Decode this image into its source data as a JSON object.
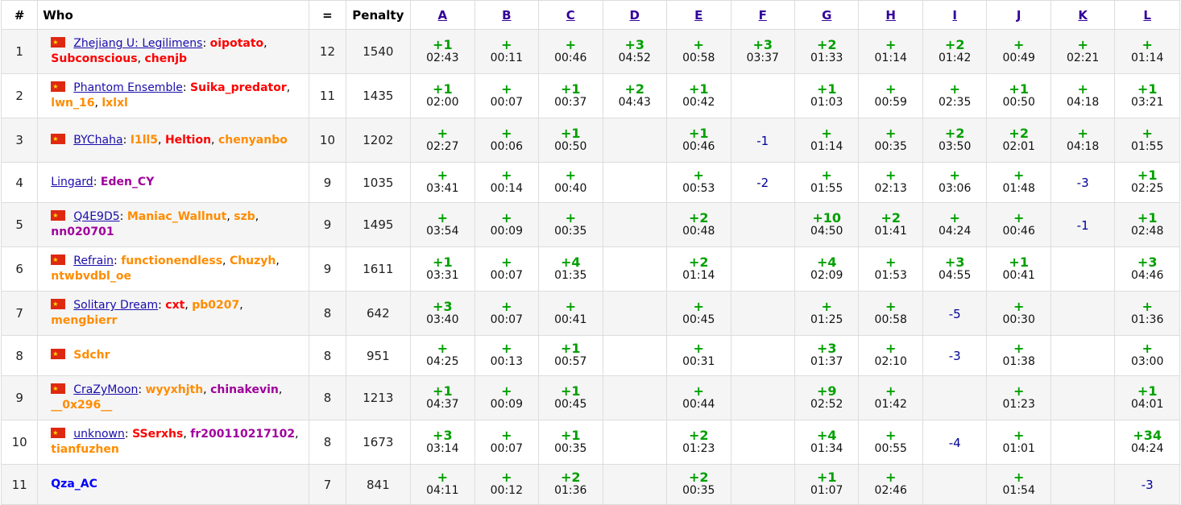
{
  "header": {
    "rank": "#",
    "who": "Who",
    "solved": "=",
    "penalty": "Penalty",
    "problems": [
      "A",
      "B",
      "C",
      "D",
      "E",
      "F",
      "G",
      "H",
      "I",
      "J",
      "K",
      "L"
    ]
  },
  "rows": [
    {
      "rank": "1",
      "flag": true,
      "team": "Zhejiang U: Legilimens",
      "members": [
        {
          "name": "oipotato",
          "color": "red"
        },
        {
          "name": "Subconscious",
          "color": "red"
        },
        {
          "name": "chenjb",
          "color": "red"
        }
      ],
      "solved": "12",
      "penalty": "1540",
      "cells": [
        {
          "t": "+1",
          "m": "02:43"
        },
        {
          "t": "+",
          "m": "00:11"
        },
        {
          "t": "+",
          "m": "00:46"
        },
        {
          "t": "+3",
          "m": "04:52"
        },
        {
          "t": "+",
          "m": "00:58"
        },
        {
          "t": "+3",
          "m": "03:37"
        },
        {
          "t": "+2",
          "m": "01:33"
        },
        {
          "t": "+",
          "m": "01:14"
        },
        {
          "t": "+2",
          "m": "01:42"
        },
        {
          "t": "+",
          "m": "00:49"
        },
        {
          "t": "+",
          "m": "02:21"
        },
        {
          "t": "+",
          "m": "01:14"
        }
      ]
    },
    {
      "rank": "2",
      "flag": true,
      "team": "Phantom Ensemble",
      "members": [
        {
          "name": "Suika_predator",
          "color": "red"
        },
        {
          "name": "lwn_16",
          "color": "org"
        },
        {
          "name": "lxlxl",
          "color": "org"
        }
      ],
      "solved": "11",
      "penalty": "1435",
      "cells": [
        {
          "t": "+1",
          "m": "02:00"
        },
        {
          "t": "+",
          "m": "00:07"
        },
        {
          "t": "+1",
          "m": "00:37"
        },
        {
          "t": "+2",
          "m": "04:43"
        },
        {
          "t": "+1",
          "m": "00:42"
        },
        {},
        {
          "t": "+1",
          "m": "01:03"
        },
        {
          "t": "+",
          "m": "00:59"
        },
        {
          "t": "+",
          "m": "02:35"
        },
        {
          "t": "+1",
          "m": "00:50"
        },
        {
          "t": "+",
          "m": "04:18"
        },
        {
          "t": "+1",
          "m": "03:21"
        }
      ]
    },
    {
      "rank": "3",
      "flag": true,
      "team": "BYChaha",
      "members": [
        {
          "name": "I1ll5",
          "color": "org"
        },
        {
          "name": "Heltion",
          "color": "red"
        },
        {
          "name": "chenyanbo",
          "color": "org"
        }
      ],
      "solved": "10",
      "penalty": "1202",
      "cells": [
        {
          "t": "+",
          "m": "02:27"
        },
        {
          "t": "+",
          "m": "00:06"
        },
        {
          "t": "+1",
          "m": "00:50"
        },
        {},
        {
          "t": "+1",
          "m": "00:46"
        },
        {
          "w": "-1"
        },
        {
          "t": "+",
          "m": "01:14"
        },
        {
          "t": "+",
          "m": "00:35"
        },
        {
          "t": "+2",
          "m": "03:50"
        },
        {
          "t": "+2",
          "m": "02:01"
        },
        {
          "t": "+",
          "m": "04:18"
        },
        {
          "t": "+",
          "m": "01:55"
        }
      ]
    },
    {
      "rank": "4",
      "flag": false,
      "team": "Lingard",
      "members": [
        {
          "name": "Eden_CY",
          "color": "pur"
        }
      ],
      "solved": "9",
      "penalty": "1035",
      "short": true,
      "cells": [
        {
          "t": "+",
          "m": "03:41"
        },
        {
          "t": "+",
          "m": "00:14"
        },
        {
          "t": "+",
          "m": "00:40"
        },
        {},
        {
          "t": "+",
          "m": "00:53"
        },
        {
          "w": "-2"
        },
        {
          "t": "+",
          "m": "01:55"
        },
        {
          "t": "+",
          "m": "02:13"
        },
        {
          "t": "+",
          "m": "03:06"
        },
        {
          "t": "+",
          "m": "01:48"
        },
        {
          "w": "-3"
        },
        {
          "t": "+1",
          "m": "02:25"
        }
      ]
    },
    {
      "rank": "5",
      "flag": true,
      "team": "Q4E9D5",
      "members": [
        {
          "name": "Maniac_Wallnut",
          "color": "org"
        },
        {
          "name": "szb",
          "color": "org"
        },
        {
          "name": "nn020701",
          "color": "pur"
        }
      ],
      "solved": "9",
      "penalty": "1495",
      "cells": [
        {
          "t": "+",
          "m": "03:54"
        },
        {
          "t": "+",
          "m": "00:09"
        },
        {
          "t": "+",
          "m": "00:35"
        },
        {},
        {
          "t": "+2",
          "m": "00:48"
        },
        {},
        {
          "t": "+10",
          "m": "04:50"
        },
        {
          "t": "+2",
          "m": "01:41"
        },
        {
          "t": "+",
          "m": "04:24"
        },
        {
          "t": "+",
          "m": "00:46"
        },
        {
          "w": "-1"
        },
        {
          "t": "+1",
          "m": "02:48"
        }
      ]
    },
    {
      "rank": "6",
      "flag": true,
      "team": "Refrain",
      "members": [
        {
          "name": "functionendless",
          "color": "org"
        },
        {
          "name": "Chuzyh",
          "color": "org"
        },
        {
          "name": "ntwbvdbl_oe",
          "color": "org"
        }
      ],
      "solved": "9",
      "penalty": "1611",
      "cells": [
        {
          "t": "+1",
          "m": "03:31"
        },
        {
          "t": "+",
          "m": "00:07"
        },
        {
          "t": "+4",
          "m": "01:35"
        },
        {},
        {
          "t": "+2",
          "m": "01:14"
        },
        {},
        {
          "t": "+4",
          "m": "02:09"
        },
        {
          "t": "+",
          "m": "01:53"
        },
        {
          "t": "+3",
          "m": "04:55"
        },
        {
          "t": "+1",
          "m": "00:41"
        },
        {},
        {
          "t": "+3",
          "m": "04:46"
        }
      ]
    },
    {
      "rank": "7",
      "flag": true,
      "team": "Solitary Dream",
      "members": [
        {
          "name": "cxt",
          "color": "red"
        },
        {
          "name": "pb0207",
          "color": "org"
        },
        {
          "name": "mengbierr",
          "color": "org"
        }
      ],
      "solved": "8",
      "penalty": "642",
      "cells": [
        {
          "t": "+3",
          "m": "03:40"
        },
        {
          "t": "+",
          "m": "00:07"
        },
        {
          "t": "+",
          "m": "00:41"
        },
        {},
        {
          "t": "+",
          "m": "00:45"
        },
        {},
        {
          "t": "+",
          "m": "01:25"
        },
        {
          "t": "+",
          "m": "00:58"
        },
        {
          "w": "-5"
        },
        {
          "t": "+",
          "m": "00:30"
        },
        {},
        {
          "t": "+",
          "m": "01:36"
        }
      ]
    },
    {
      "rank": "8",
      "flag": true,
      "team": "",
      "members": [
        {
          "name": "Sdchr",
          "color": "org"
        }
      ],
      "solved": "8",
      "penalty": "951",
      "short": true,
      "cells": [
        {
          "t": "+",
          "m": "04:25"
        },
        {
          "t": "+",
          "m": "00:13"
        },
        {
          "t": "+1",
          "m": "00:57"
        },
        {},
        {
          "t": "+",
          "m": "00:31"
        },
        {},
        {
          "t": "+3",
          "m": "01:37"
        },
        {
          "t": "+",
          "m": "02:10"
        },
        {
          "w": "-3"
        },
        {
          "t": "+",
          "m": "01:38"
        },
        {},
        {
          "t": "+",
          "m": "03:00"
        }
      ]
    },
    {
      "rank": "9",
      "flag": true,
      "team": "CraZyMoon",
      "members": [
        {
          "name": "wyyxhjth",
          "color": "org"
        },
        {
          "name": "chinakevin",
          "color": "pur"
        },
        {
          "name": "__0x296__",
          "color": "org"
        }
      ],
      "solved": "8",
      "penalty": "1213",
      "cells": [
        {
          "t": "+1",
          "m": "04:37"
        },
        {
          "t": "+",
          "m": "00:09"
        },
        {
          "t": "+1",
          "m": "00:45"
        },
        {},
        {
          "t": "+",
          "m": "00:44"
        },
        {},
        {
          "t": "+9",
          "m": "02:52"
        },
        {
          "t": "+",
          "m": "01:42"
        },
        {},
        {
          "t": "+",
          "m": "01:23"
        },
        {},
        {
          "t": "+1",
          "m": "04:01"
        }
      ]
    },
    {
      "rank": "10",
      "flag": true,
      "team": "unknown",
      "members": [
        {
          "name": "SSerxhs",
          "color": "red"
        },
        {
          "name": "fr200110217102",
          "color": "pur"
        },
        {
          "name": "tianfuzhen",
          "color": "org"
        }
      ],
      "solved": "8",
      "penalty": "1673",
      "cells": [
        {
          "t": "+3",
          "m": "03:14"
        },
        {
          "t": "+",
          "m": "00:07"
        },
        {
          "t": "+1",
          "m": "00:35"
        },
        {},
        {
          "t": "+2",
          "m": "01:23"
        },
        {},
        {
          "t": "+4",
          "m": "01:34"
        },
        {
          "t": "+",
          "m": "00:55"
        },
        {
          "w": "-4"
        },
        {
          "t": "+",
          "m": "01:01"
        },
        {},
        {
          "t": "+34",
          "m": "04:24"
        }
      ]
    },
    {
      "rank": "11",
      "flag": false,
      "team": "",
      "members": [
        {
          "name": "Qza_AC",
          "color": "blu"
        }
      ],
      "solved": "7",
      "penalty": "841",
      "short": true,
      "cells": [
        {
          "t": "+",
          "m": "04:11"
        },
        {
          "t": "+",
          "m": "00:12"
        },
        {
          "t": "+2",
          "m": "01:36"
        },
        {},
        {
          "t": "+2",
          "m": "00:35"
        },
        {},
        {
          "t": "+1",
          "m": "01:07"
        },
        {
          "t": "+",
          "m": "02:46"
        },
        {},
        {
          "t": "+",
          "m": "01:54"
        },
        {},
        {
          "w": "-3"
        }
      ]
    }
  ]
}
